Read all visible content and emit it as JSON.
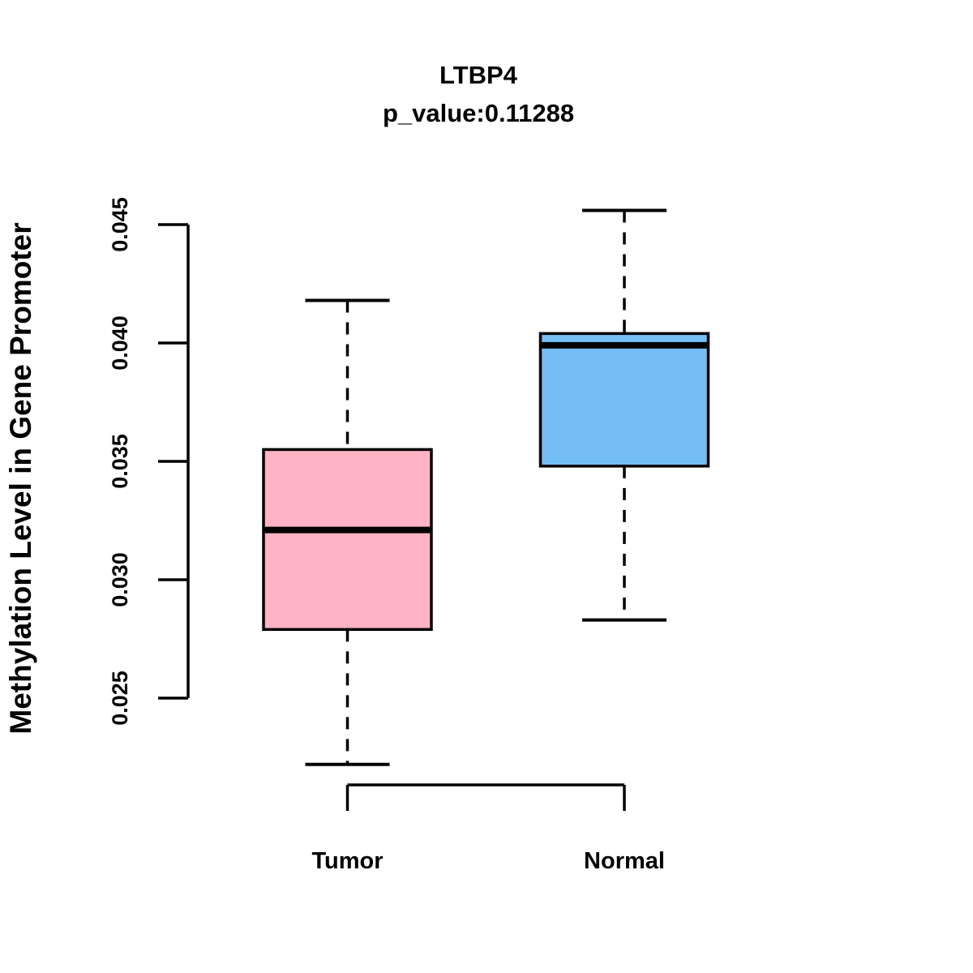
{
  "chart_data": {
    "type": "boxplot",
    "title": "LTBP4",
    "subtitle": "p_value:0.11288",
    "ylabel": "Methylation Level in Gene Promoter",
    "xlabel": "",
    "categories": [
      "Tumor",
      "Normal"
    ],
    "series": [
      {
        "name": "Tumor",
        "color": "#FFB3C4",
        "whisker_low": 0.0222,
        "q1": 0.0279,
        "median": 0.0321,
        "q3": 0.0355,
        "whisker_high": 0.0418
      },
      {
        "name": "Normal",
        "color": "#74BEF5",
        "whisker_low": 0.0283,
        "q1": 0.0348,
        "median": 0.0399,
        "q3": 0.0404,
        "whisker_high": 0.0456
      }
    ],
    "y_ticks": [
      0.025,
      0.03,
      0.035,
      0.04,
      0.045
    ],
    "ylim": [
      0.025,
      0.045
    ],
    "y_tick_format_decimals": 3,
    "grid": false,
    "legend": null,
    "box_border_color": "#000000",
    "median_color": "#000000",
    "whisker_style": "dashed"
  }
}
